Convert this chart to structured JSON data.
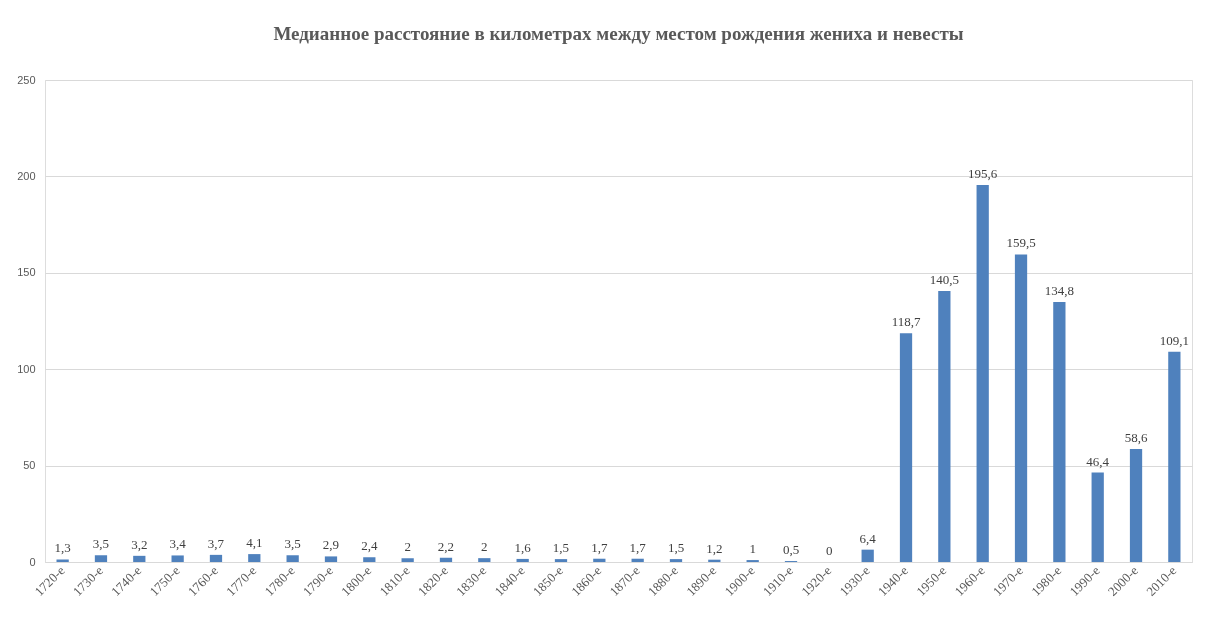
{
  "chart_data": {
    "type": "bar",
    "title": "Медианное расстояние в километрах между местом рождения жениха и невесты",
    "categories": [
      "1720-е",
      "1730-е",
      "1740-е",
      "1750-е",
      "1760-е",
      "1770-е",
      "1780-е",
      "1790-е",
      "1800-е",
      "1810-е",
      "1820-е",
      "1830-е",
      "1840-е",
      "1850-е",
      "1860-е",
      "1870-е",
      "1880-е",
      "1890-е",
      "1900-е",
      "1910-е",
      "1920-е",
      "1930-е",
      "1940-е",
      "1950-е",
      "1960-е",
      "1970-е",
      "1980-е",
      "1990-е",
      "2000-е",
      "2010-е"
    ],
    "values": [
      1.3,
      3.5,
      3.2,
      3.4,
      3.7,
      4.1,
      3.5,
      2.9,
      2.4,
      2,
      2.2,
      2,
      1.6,
      1.5,
      1.7,
      1.7,
      1.5,
      1.2,
      1,
      0.5,
      0,
      6.4,
      118.7,
      140.5,
      195.6,
      159.5,
      134.8,
      46.4,
      58.6,
      109.1
    ],
    "value_labels": [
      "1,3",
      "3,5",
      "3,2",
      "3,4",
      "3,7",
      "4,1",
      "3,5",
      "2,9",
      "2,4",
      "2",
      "2,2",
      "2",
      "1,6",
      "1,5",
      "1,7",
      "1,7",
      "1,5",
      "1,2",
      "1",
      "0,5",
      "0",
      "6,4",
      "118,7",
      "140,5",
      "195,6",
      "159,5",
      "134,8",
      "46,4",
      "58,6",
      "109,1"
    ],
    "color": "#4f81bd",
    "ylim": [
      0,
      250
    ],
    "yticks": [
      0,
      50,
      100,
      150,
      200,
      250
    ],
    "grid": "y"
  }
}
